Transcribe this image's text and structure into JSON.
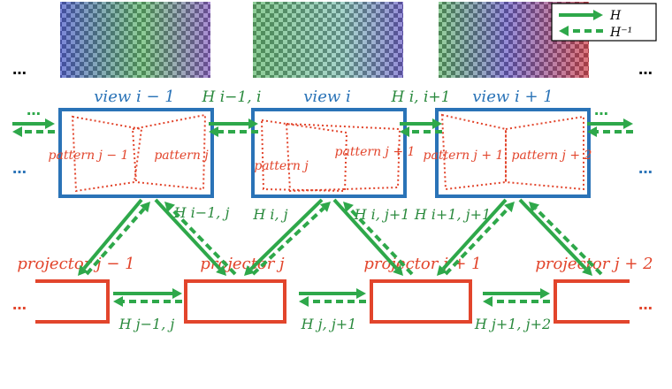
{
  "legend": {
    "solid": "H",
    "dashed": "H⁻¹"
  },
  "ellipsis": "…",
  "views": [
    {
      "label": "view i − 1",
      "patterns": [
        "pattern j − 1",
        "pattern j"
      ]
    },
    {
      "label": "view i",
      "patterns": [
        "pattern j",
        "pattern j + 1"
      ]
    },
    {
      "label": "view i + 1",
      "patterns": [
        "pattern j + 1",
        "pattern j + 2"
      ]
    }
  ],
  "view_homographies": [
    "H i−1, i",
    "H i, i+1"
  ],
  "view_projector_homographies": [
    "H i−1, j",
    "H i, j",
    "H i, j+1",
    "H i+1, j+1"
  ],
  "projectors": [
    "projector j − 1",
    "projector j",
    "projector j + 1",
    "projector j + 2"
  ],
  "projector_homographies": [
    "H j−1, j",
    "H j, j+1",
    "H j+1, j+2"
  ],
  "colors": {
    "view_box": "#2a73b7",
    "projector_box": "#e2452c",
    "arrow": "#2ea84a",
    "pattern_line": "#e2452c"
  }
}
